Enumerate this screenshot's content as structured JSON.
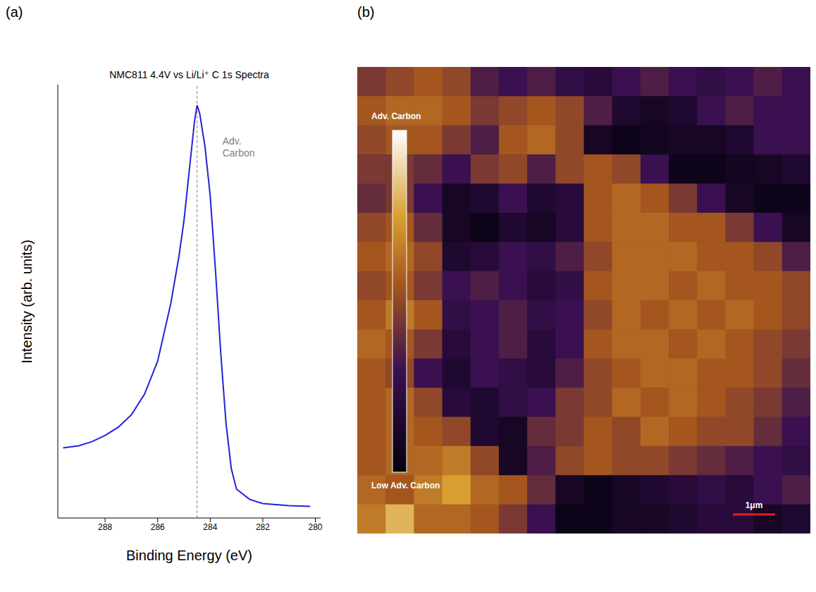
{
  "chart_data": [
    {
      "panel": "(a)",
      "type": "line",
      "title": "NMC811 4.4V vs Li/Li⁺ C 1s Spectra",
      "x_label": "Binding Energy (eV)",
      "y_label": "Intensity (arb. units)",
      "x": [
        289.6,
        289,
        288.5,
        288,
        287.5,
        287,
        286.5,
        286,
        285.5,
        285.2,
        285,
        284.8,
        284.6,
        284.5,
        284.4,
        284.2,
        284,
        283.8,
        283.6,
        283.4,
        283.2,
        283,
        282.5,
        282,
        281,
        280.2
      ],
      "values": [
        0.17,
        0.175,
        0.185,
        0.2,
        0.22,
        0.25,
        0.3,
        0.38,
        0.52,
        0.63,
        0.72,
        0.84,
        0.96,
        1.0,
        0.98,
        0.9,
        0.78,
        0.6,
        0.4,
        0.23,
        0.12,
        0.07,
        0.045,
        0.035,
        0.03,
        0.028
      ],
      "color": "#2323d6",
      "xlim": [
        289.8,
        279.8
      ],
      "xticks": [
        288,
        286,
        284,
        282,
        280
      ],
      "ylim": [
        0,
        1.05
      ],
      "yticks": [],
      "tick_labels": "x",
      "annotations": [
        {
          "text": "Adv. Carbon",
          "x": 284.5,
          "line_style": "dashed",
          "color": "#808080"
        }
      ]
    },
    {
      "panel": "(b)",
      "type": "heatmap",
      "tick_labels": false,
      "cells": [
        [
          0.45,
          0.5,
          0.55,
          0.5,
          0.35,
          0.3,
          0.35,
          0.25,
          0.2,
          0.3,
          0.35,
          0.3,
          0.25,
          0.3,
          0.35,
          0.3
        ],
        [
          0.55,
          0.6,
          0.6,
          0.55,
          0.45,
          0.5,
          0.55,
          0.5,
          0.35,
          0.15,
          0.1,
          0.15,
          0.3,
          0.35,
          0.3,
          0.3
        ],
        [
          0.5,
          0.55,
          0.55,
          0.45,
          0.35,
          0.55,
          0.6,
          0.5,
          0.1,
          0.05,
          0.08,
          0.1,
          0.1,
          0.15,
          0.3,
          0.3
        ],
        [
          0.45,
          0.45,
          0.4,
          0.3,
          0.45,
          0.5,
          0.35,
          0.5,
          0.55,
          0.5,
          0.3,
          0.05,
          0.05,
          0.08,
          0.1,
          0.15
        ],
        [
          0.4,
          0.45,
          0.3,
          0.1,
          0.15,
          0.3,
          0.15,
          0.2,
          0.55,
          0.6,
          0.55,
          0.45,
          0.3,
          0.1,
          0.05,
          0.05
        ],
        [
          0.5,
          0.55,
          0.4,
          0.1,
          0.05,
          0.15,
          0.1,
          0.2,
          0.55,
          0.6,
          0.6,
          0.55,
          0.55,
          0.45,
          0.3,
          0.1
        ],
        [
          0.55,
          0.6,
          0.5,
          0.15,
          0.2,
          0.3,
          0.25,
          0.35,
          0.5,
          0.6,
          0.6,
          0.6,
          0.55,
          0.55,
          0.5,
          0.35
        ],
        [
          0.5,
          0.55,
          0.45,
          0.3,
          0.35,
          0.3,
          0.2,
          0.25,
          0.55,
          0.6,
          0.6,
          0.55,
          0.6,
          0.55,
          0.55,
          0.5
        ],
        [
          0.55,
          0.65,
          0.55,
          0.25,
          0.3,
          0.35,
          0.25,
          0.3,
          0.5,
          0.6,
          0.55,
          0.6,
          0.55,
          0.6,
          0.55,
          0.5
        ],
        [
          0.6,
          0.55,
          0.45,
          0.2,
          0.3,
          0.35,
          0.2,
          0.3,
          0.55,
          0.6,
          0.6,
          0.55,
          0.6,
          0.55,
          0.5,
          0.45
        ],
        [
          0.55,
          0.5,
          0.3,
          0.15,
          0.3,
          0.25,
          0.2,
          0.35,
          0.5,
          0.55,
          0.6,
          0.6,
          0.55,
          0.55,
          0.5,
          0.4
        ],
        [
          0.55,
          0.6,
          0.5,
          0.2,
          0.15,
          0.25,
          0.3,
          0.45,
          0.5,
          0.6,
          0.55,
          0.6,
          0.55,
          0.5,
          0.45,
          0.35
        ],
        [
          0.55,
          0.6,
          0.55,
          0.5,
          0.15,
          0.1,
          0.4,
          0.45,
          0.55,
          0.5,
          0.6,
          0.55,
          0.5,
          0.5,
          0.4,
          0.3
        ],
        [
          0.55,
          0.6,
          0.6,
          0.65,
          0.5,
          0.1,
          0.35,
          0.5,
          0.55,
          0.5,
          0.5,
          0.45,
          0.4,
          0.35,
          0.3,
          0.25
        ],
        [
          0.6,
          0.55,
          0.65,
          0.75,
          0.6,
          0.55,
          0.4,
          0.1,
          0.05,
          0.1,
          0.15,
          0.2,
          0.25,
          0.2,
          0.3,
          0.35
        ],
        [
          0.65,
          0.8,
          0.6,
          0.6,
          0.55,
          0.45,
          0.3,
          0.05,
          0.05,
          0.1,
          0.1,
          0.15,
          0.2,
          0.2,
          0.1,
          0.15
        ]
      ],
      "colorbar": {
        "range": [
          0,
          1
        ],
        "ticks": [],
        "top_label": "Adv. Carbon",
        "bottom_label": "Low Adv. Carbon"
      },
      "scale_bar": "1μm"
    }
  ]
}
